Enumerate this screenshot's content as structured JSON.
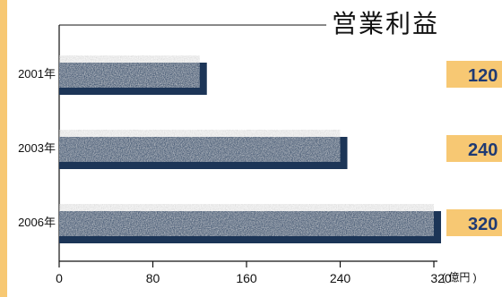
{
  "chart_data": {
    "type": "bar",
    "orientation": "horizontal",
    "title": "営業利益",
    "categories": [
      "2001年",
      "2003年",
      "2006年"
    ],
    "values": [
      120,
      240,
      320
    ],
    "value_labels": [
      "120",
      "240",
      "320"
    ],
    "xticks": [
      "0",
      "80",
      "160",
      "240",
      "320"
    ],
    "xlim": [
      0,
      320
    ],
    "unit": "( 億円 )",
    "grid": false
  },
  "colors": {
    "shadow": "#1c3557",
    "label_box": "#f7c873",
    "label_text": "#1f3a73",
    "strip": "#f7c873"
  }
}
